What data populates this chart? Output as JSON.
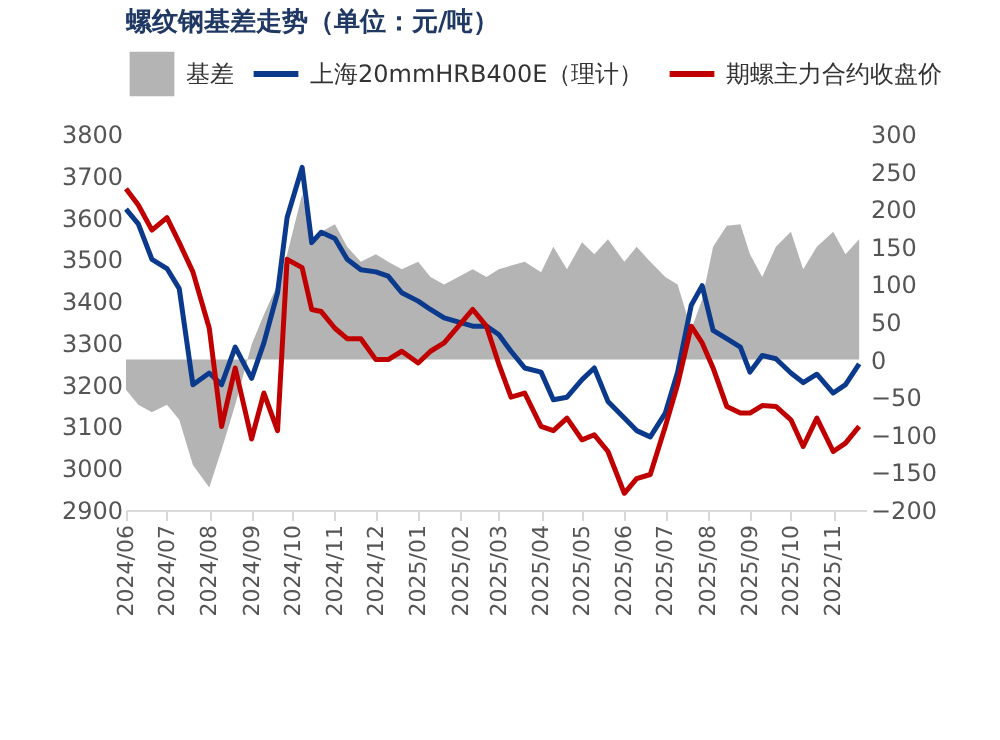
{
  "chart_data": {
    "type": "line",
    "title": "螺纹钢基差走势（单位：元/吨）",
    "x": [
      "2024-06-01",
      "2024-06-10",
      "2024-06-20",
      "2024-07-01",
      "2024-07-10",
      "2024-07-20",
      "2024-08-01",
      "2024-08-10",
      "2024-08-20",
      "2024-09-01",
      "2024-09-10",
      "2024-09-20",
      "2024-09-27",
      "2024-10-08",
      "2024-10-15",
      "2024-10-22",
      "2024-11-01",
      "2024-11-10",
      "2024-11-20",
      "2024-12-01",
      "2024-12-10",
      "2024-12-20",
      "2025-01-01",
      "2025-01-10",
      "2025-01-20",
      "2025-02-10",
      "2025-02-20",
      "2025-03-01",
      "2025-03-10",
      "2025-03-20",
      "2025-04-01",
      "2025-04-10",
      "2025-04-20",
      "2025-05-01",
      "2025-05-10",
      "2025-05-20",
      "2025-06-01",
      "2025-06-10",
      "2025-06-20",
      "2025-07-01",
      "2025-07-10",
      "2025-07-20",
      "2025-07-28",
      "2025-08-05",
      "2025-08-15",
      "2025-08-25",
      "2025-09-01",
      "2025-09-10",
      "2025-09-20",
      "2025-10-01",
      "2025-10-10",
      "2025-10-20",
      "2025-11-01",
      "2025-11-10",
      "2025-11-20"
    ],
    "series": [
      {
        "name": "基差",
        "type": "area",
        "axis": "y2",
        "color": "#b4b4b4",
        "values": [
          -40,
          -60,
          -70,
          -60,
          -80,
          -140,
          -170,
          -120,
          -60,
          20,
          60,
          100,
          140,
          220,
          160,
          170,
          180,
          150,
          130,
          140,
          130,
          120,
          130,
          110,
          100,
          120,
          110,
          120,
          125,
          130,
          116,
          150,
          120,
          156,
          140,
          160,
          130,
          150,
          130,
          110,
          100,
          40,
          80,
          150,
          178,
          180,
          140,
          110,
          150,
          170,
          120,
          150,
          170,
          140,
          160
        ]
      },
      {
        "name": "上海20mmHRB400E（理计）",
        "color": "#0b3a8c",
        "values": [
          3620,
          3585,
          3500,
          3478,
          3430,
          3200,
          3228,
          3200,
          3290,
          3215,
          3300,
          3420,
          3600,
          3720,
          3540,
          3565,
          3550,
          3500,
          3475,
          3470,
          3460,
          3420,
          3400,
          3380,
          3360,
          3340,
          3340,
          3320,
          3280,
          3240,
          3230,
          3164,
          3170,
          3212,
          3240,
          3160,
          3120,
          3090,
          3075,
          3132,
          3230,
          3390,
          3437,
          3330,
          3310,
          3290,
          3230,
          3270,
          3262,
          3228,
          3205,
          3225,
          3180,
          3200,
          3250
        ]
      },
      {
        "name": "期螺主力合约收盘价",
        "color": "#c00000",
        "values": [
          3669,
          3630,
          3570,
          3600,
          3540,
          3470,
          3335,
          3100,
          3240,
          3070,
          3180,
          3090,
          3500,
          3480,
          3380,
          3375,
          3335,
          3310,
          3310,
          3260,
          3260,
          3280,
          3252,
          3280,
          3300,
          3380,
          3340,
          3250,
          3170,
          3180,
          3100,
          3090,
          3120,
          3068,
          3080,
          3040,
          2940,
          2975,
          2985,
          3100,
          3200,
          3340,
          3300,
          3240,
          3148,
          3132,
          3132,
          3150,
          3148,
          3116,
          3052,
          3120,
          3040,
          3060,
          3100
        ]
      }
    ],
    "xlim": [
      "2024-06-01",
      "2025-11-25"
    ],
    "xticks": [
      {
        "value": "2024-06",
        "label": "2024/06"
      },
      {
        "value": "2024-07",
        "label": "2024/07"
      },
      {
        "value": "2024-08",
        "label": "2024/08"
      },
      {
        "value": "2024-09",
        "label": "2024/09"
      },
      {
        "value": "2024-10",
        "label": "2024/10"
      },
      {
        "value": "2024-11",
        "label": "2024/11"
      },
      {
        "value": "2024-12",
        "label": "2024/12"
      },
      {
        "value": "2025-01",
        "label": "2025/01"
      },
      {
        "value": "2025-02",
        "label": "2025/02"
      },
      {
        "value": "2025-03",
        "label": "2025/03"
      },
      {
        "value": "2025-04",
        "label": "2025/04"
      },
      {
        "value": "2025-05",
        "label": "2025/05"
      },
      {
        "value": "2025-06",
        "label": "2025/06"
      },
      {
        "value": "2025-07",
        "label": "2025/07"
      },
      {
        "value": "2025-08",
        "label": "2025/08"
      },
      {
        "value": "2025-09",
        "label": "2025/09"
      },
      {
        "value": "2025-10",
        "label": "2025/10"
      },
      {
        "value": "2025-11",
        "label": "2025/11"
      }
    ],
    "ylim": [
      2900,
      3800
    ],
    "yticks": [
      2900,
      3000,
      3100,
      3200,
      3300,
      3400,
      3500,
      3600,
      3700,
      3800
    ],
    "y2lim": [
      -200,
      300
    ],
    "y2ticks": [
      -200,
      -150,
      -100,
      -50,
      0,
      50,
      100,
      150,
      200,
      250,
      300
    ],
    "grid": false,
    "legend": "top"
  }
}
